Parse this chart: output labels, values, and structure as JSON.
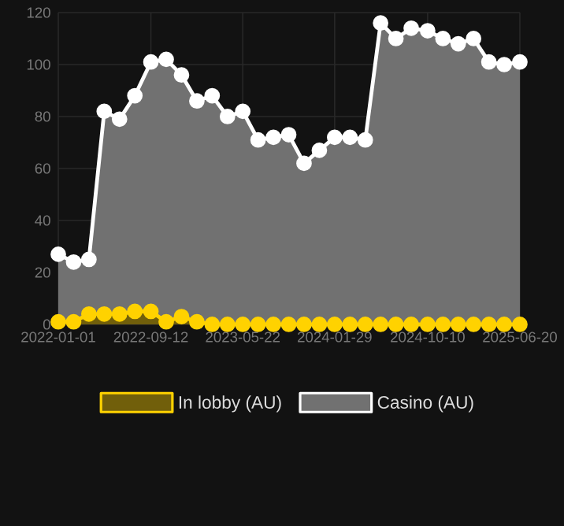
{
  "chart_data": {
    "type": "area",
    "x": [
      "2022-01-01",
      "2022-02-12",
      "2022-03-26",
      "2022-05-07",
      "2022-06-18",
      "2022-07-30",
      "2022-09-12",
      "2022-10-24",
      "2022-12-05",
      "2023-01-16",
      "2023-02-27",
      "2023-04-10",
      "2023-05-22",
      "2023-07-03",
      "2023-08-14",
      "2023-09-25",
      "2023-11-06",
      "2023-12-18",
      "2024-01-29",
      "2024-03-11",
      "2024-04-22",
      "2024-06-03",
      "2024-07-15",
      "2024-08-26",
      "2024-10-10",
      "2024-11-21",
      "2025-01-02",
      "2025-02-13",
      "2025-03-27",
      "2025-05-08",
      "2025-06-20"
    ],
    "series": [
      {
        "name": "In lobby (AU)",
        "color": "#ffd200",
        "values": [
          1,
          1,
          4,
          4,
          4,
          5,
          5,
          1,
          3,
          1,
          0,
          0,
          0,
          0,
          0,
          0,
          0,
          0,
          0,
          0,
          0,
          0,
          0,
          0,
          0,
          0,
          0,
          0,
          0,
          0,
          0
        ]
      },
      {
        "name": "Casino (AU)",
        "color": "#ffffff",
        "values": [
          27,
          24,
          25,
          82,
          79,
          88,
          101,
          102,
          96,
          86,
          88,
          80,
          82,
          71,
          72,
          73,
          62,
          67,
          72,
          72,
          71,
          116,
          110,
          114,
          113,
          110,
          108,
          110,
          101,
          100,
          101
        ]
      }
    ],
    "xlim": [
      "2022-01-01",
      "2025-06-20"
    ],
    "xticks": [
      "2022-01-01",
      "2022-09-12",
      "2023-05-22",
      "2024-01-29",
      "2024-10-10",
      "2025-06-20"
    ],
    "ylim": [
      0,
      120
    ],
    "yticks": [
      0,
      20,
      40,
      60,
      80,
      100,
      120
    ],
    "grid": true,
    "legend": "bottom",
    "marker": "circle",
    "line_style": "solid"
  }
}
